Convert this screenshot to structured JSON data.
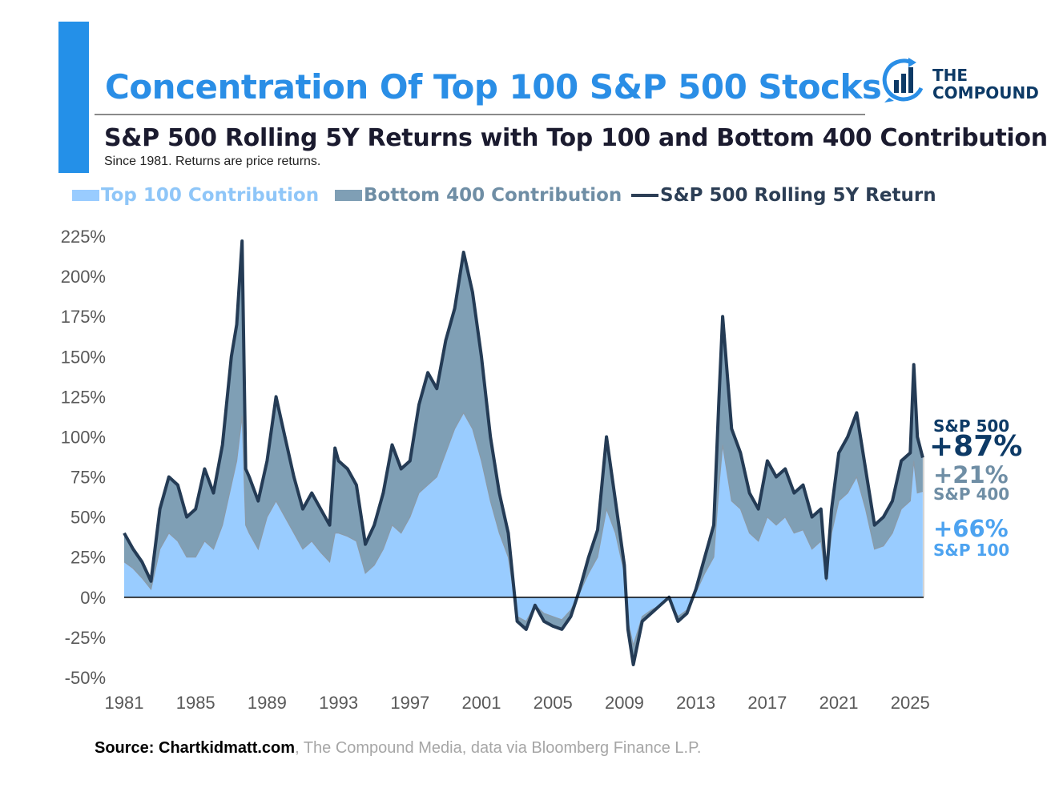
{
  "header": {
    "title": "Concentration Of Top 100 S&P 500 Stocks",
    "subtitle": "S&P 500 Rolling 5Y Returns with Top 100 and Bottom 400 Contribution",
    "note": "Since 1981. Returns are price returns.",
    "logo_text_line1": "THE",
    "logo_text_line2": "COMPOUND"
  },
  "end_labels": {
    "sp500_name": "S&P 500",
    "sp500_value": "+87%",
    "sp400_value": "+21%",
    "sp400_name": "S&P 400",
    "sp100_value": "+66%",
    "sp100_name": "S&P 100"
  },
  "source": {
    "bold": "Source: Chartkidmatt.com",
    "rest": ", The Compound Media, data via Bloomberg Finance L.P."
  },
  "colors": {
    "accent": "#2490e8",
    "top100": "#99ccff",
    "bottom400": "#7f9fb5",
    "sp500_line": "#243b55"
  },
  "chart_data": {
    "type": "area",
    "title": "Concentration Of Top 100 S&P 500 Stocks",
    "subtitle": "S&P 500 Rolling 5Y Returns with Top 100 and Bottom 400 Contribution",
    "xlabel": "",
    "ylabel": "",
    "xlim": [
      1981,
      2025.75
    ],
    "ylim": [
      -50,
      225
    ],
    "grid": false,
    "legend_position": "top",
    "legend": [
      "Top 100 Contribution",
      "Bottom 400 Contribution",
      "S&P 500 Rolling 5Y Return"
    ],
    "x_ticks": [
      "1981",
      "1985",
      "1989",
      "1993",
      "1997",
      "2001",
      "2005",
      "2009",
      "2013",
      "2017",
      "2021",
      "2025"
    ],
    "y_ticks": [
      "-50%",
      "-25%",
      "0%",
      "25%",
      "50%",
      "75%",
      "100%",
      "125%",
      "150%",
      "175%",
      "200%",
      "225%"
    ],
    "x": [
      1981.0,
      1981.5,
      1982.0,
      1982.5,
      1983.0,
      1983.5,
      1984.0,
      1984.5,
      1985.0,
      1985.5,
      1986.0,
      1986.5,
      1987.0,
      1987.3,
      1987.6,
      1987.8,
      1988.0,
      1988.5,
      1989.0,
      1989.5,
      1990.0,
      1990.5,
      1991.0,
      1991.5,
      1992.0,
      1992.5,
      1992.8,
      1993.0,
      1993.5,
      1994.0,
      1994.5,
      1995.0,
      1995.5,
      1996.0,
      1996.5,
      1997.0,
      1997.5,
      1998.0,
      1998.5,
      1999.0,
      1999.5,
      2000.0,
      2000.5,
      2001.0,
      2001.5,
      2002.0,
      2002.5,
      2003.0,
      2003.5,
      2004.0,
      2004.5,
      2005.0,
      2005.5,
      2006.0,
      2006.5,
      2007.0,
      2007.5,
      2008.0,
      2008.5,
      2009.0,
      2009.2,
      2009.5,
      2010.0,
      2010.5,
      2011.0,
      2011.5,
      2012.0,
      2012.5,
      2013.0,
      2013.5,
      2014.0,
      2014.3,
      2014.5,
      2015.0,
      2015.5,
      2016.0,
      2016.5,
      2017.0,
      2017.5,
      2018.0,
      2018.5,
      2019.0,
      2019.5,
      2020.0,
      2020.3,
      2020.6,
      2021.0,
      2021.5,
      2022.0,
      2022.5,
      2023.0,
      2023.5,
      2024.0,
      2024.5,
      2025.0,
      2025.2,
      2025.4,
      2025.7
    ],
    "series": [
      {
        "name": "S&P 500 Rolling 5Y Return",
        "values": [
          40,
          30,
          22,
          10,
          55,
          75,
          70,
          50,
          55,
          80,
          65,
          95,
          150,
          170,
          222,
          80,
          75,
          60,
          85,
          125,
          100,
          75,
          55,
          65,
          55,
          45,
          93,
          85,
          80,
          70,
          33,
          45,
          65,
          95,
          80,
          85,
          120,
          140,
          130,
          160,
          180,
          215,
          190,
          150,
          100,
          65,
          40,
          -15,
          -20,
          -5,
          -15,
          -18,
          -20,
          -12,
          5,
          25,
          42,
          100,
          60,
          20,
          -20,
          -42,
          -15,
          -10,
          -5,
          0,
          -15,
          -10,
          5,
          25,
          45,
          125,
          175,
          105,
          90,
          65,
          55,
          85,
          75,
          80,
          65,
          70,
          50,
          55,
          12,
          55,
          90,
          100,
          115,
          80,
          45,
          50,
          60,
          85,
          90,
          145,
          100,
          87
        ]
      },
      {
        "name": "Top 100 Contribution",
        "values": [
          22,
          18,
          12,
          5,
          30,
          40,
          35,
          25,
          25,
          35,
          30,
          45,
          70,
          85,
          113,
          45,
          40,
          30,
          50,
          60,
          50,
          40,
          30,
          35,
          28,
          22,
          40,
          40,
          38,
          35,
          15,
          20,
          30,
          45,
          40,
          50,
          65,
          70,
          75,
          90,
          105,
          115,
          105,
          85,
          60,
          40,
          25,
          -12,
          -15,
          -5,
          -10,
          -12,
          -14,
          -8,
          3,
          15,
          25,
          55,
          40,
          15,
          -15,
          -30,
          -12,
          -8,
          -5,
          0,
          -12,
          -8,
          3,
          15,
          25,
          70,
          95,
          60,
          55,
          40,
          35,
          50,
          45,
          50,
          40,
          42,
          30,
          35,
          10,
          40,
          60,
          65,
          75,
          55,
          30,
          32,
          40,
          55,
          60,
          85,
          65,
          66
        ]
      }
    ],
    "end_values": {
      "sp500": 87,
      "bottom400": 21,
      "top100": 66
    }
  }
}
